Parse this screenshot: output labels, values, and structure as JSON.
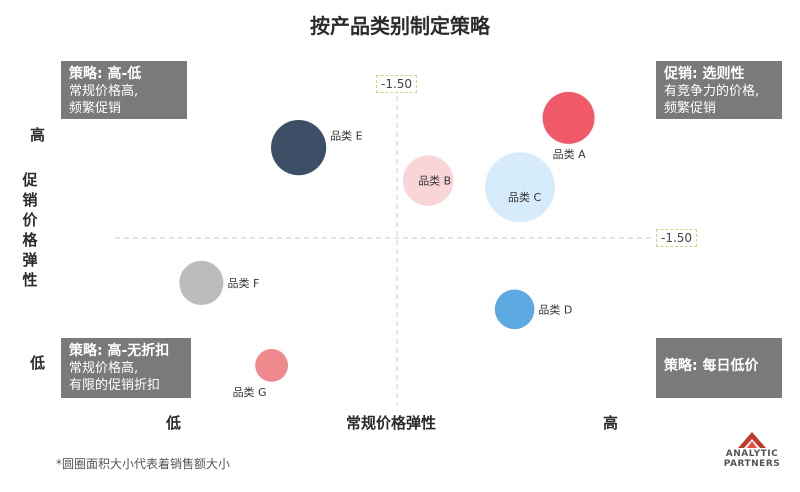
{
  "title": "按产品类别制定策略",
  "chart_data": {
    "type": "scatter",
    "title": "按产品类别制定策略",
    "xlabel": "常规价格弹性",
    "ylabel": "促销价格弹性",
    "x_tick_labels": [
      "低",
      "高"
    ],
    "y_tick_labels": [
      "低",
      "高"
    ],
    "reference_lines": {
      "x": -1.5,
      "y": -1.5,
      "x_label": "-1.50",
      "y_label": "-1.50"
    },
    "size_note": "*圆圈面积大小代表着销售额大小",
    "points": [
      {
        "label": "品类 A",
        "x": 0.84,
        "y": 0.87,
        "size": 0.55,
        "color": "#f05a68"
      },
      {
        "label": "品类 B",
        "x": 0.58,
        "y": 0.68,
        "size": 0.52,
        "color": "#f9d5d7"
      },
      {
        "label": "品类 C",
        "x": 0.75,
        "y": 0.66,
        "size": 1.0,
        "color": "#d7ecfb"
      },
      {
        "label": "品类 D",
        "x": 0.74,
        "y": 0.29,
        "size": 0.32,
        "color": "#5da9e2"
      },
      {
        "label": "品类 E",
        "x": 0.34,
        "y": 0.78,
        "size": 0.62,
        "color": "#3d4f66"
      },
      {
        "label": "品类 F",
        "x": 0.16,
        "y": 0.37,
        "size": 0.4,
        "color": "#bcbcbc"
      },
      {
        "label": "品类 G",
        "x": 0.29,
        "y": 0.12,
        "size": 0.22,
        "color": "#ee8a8e"
      }
    ]
  },
  "quadrants": {
    "top_left": {
      "head": "策略: 高-低",
      "body": "常规价格高,\n频繁促销"
    },
    "top_right": {
      "head": "促销: 选则性",
      "body": "有竞争力的价格,\n频繁促销"
    },
    "bottom_left": {
      "head": "策略: 高-无折扣",
      "body": "常规价格高,\n有限的促销折扣"
    },
    "bottom_right": {
      "head": "策略: 每日低价",
      "body": ""
    }
  },
  "axis": {
    "y_title": "促销价格弹性",
    "y_high": "高",
    "y_low": "低",
    "x_title": "常规价格弹性",
    "x_low": "低",
    "x_high": "高"
  },
  "footnote": "*圆圈面积大小代表着销售额大小",
  "logo": {
    "line1": "ANALYTIC",
    "line2": "PARTNERS",
    "color": "#c0392b"
  }
}
